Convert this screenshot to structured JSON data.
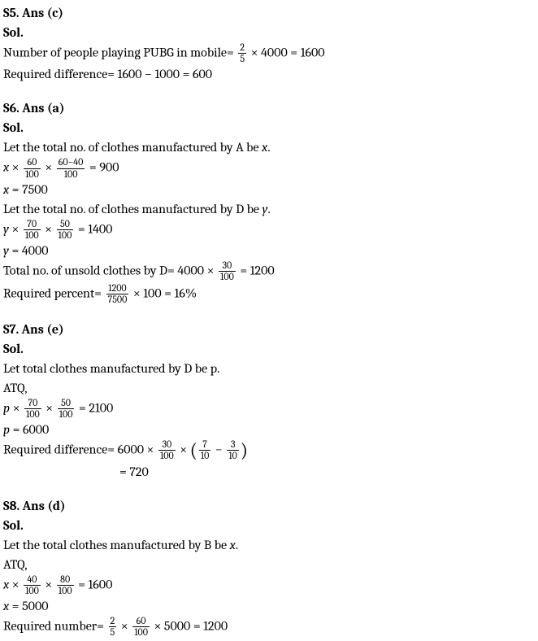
{
  "s5": {
    "heading": "S5. Ans (c)",
    "sol_label": "Sol.",
    "l1_a": "Number of people playing PUBG in mobile",
    "l1_eq": "=",
    "l1_frac_num": "2",
    "l1_frac_den": "5",
    "l1_times": "×",
    "l1_b": "4000",
    "l1_eq2": "=",
    "l1_c": "1600",
    "l2_a": "Required difference",
    "l2_eq": "=",
    "l2_b": "1600",
    "l2_minus": "−",
    "l2_c": "1000",
    "l2_eq2": "=",
    "l2_d": "600"
  },
  "s6": {
    "heading": "S6. Ans (a)",
    "sol_label": "Sol.",
    "l1": "Let the total no. of clothes manufactured by A be ",
    "l1_var": "x",
    "l1_dot": ".",
    "l2_var": "x",
    "l2_t1": "×",
    "l2_f1n": "60",
    "l2_f1d": "100",
    "l2_t2": "×",
    "l2_f2n": "60−40",
    "l2_f2d": "100",
    "l2_eq": "=",
    "l2_rhs": "900",
    "l3_var": "x",
    "l3_eq": "=",
    "l3_rhs": "7500",
    "l4_pre": " Let the total no. of clothes manufactured by D be ",
    "l4_var": "y",
    "l4_dot": ".",
    "l5_var": "y",
    "l5_t1": "×",
    "l5_f1n": "70",
    "l5_f1d": "100",
    "l5_t2": "×",
    "l5_f2n": "50",
    "l5_f2d": "100",
    "l5_eq": "=",
    "l5_rhs": "1400",
    "l6_var": "y",
    "l6_eq": "=",
    "l6_rhs": "4000",
    "l7_a": "Total no. of unsold clothes by D",
    "l7_eq": "=",
    "l7_b": "4000",
    "l7_t": "×",
    "l7_fn": "30",
    "l7_fd": "100",
    "l7_eq2": "=",
    "l7_c": "1200",
    "l8_a": "Required percent",
    "l8_eq": "=",
    "l8_fn": "1200",
    "l8_fd": "7500",
    "l8_t": "×",
    "l8_b": "100",
    "l8_eq2": "=",
    "l8_c": "16%"
  },
  "s7": {
    "heading": "S7. Ans (e)",
    "sol_label": "Sol.",
    "l1": "Let total clothes manufactured by D be p.",
    "l2": "ATQ,",
    "l3_var": "p",
    "l3_t1": "×",
    "l3_f1n": "70",
    "l3_f1d": "100",
    "l3_t2": "×",
    "l3_f2n": "50",
    "l3_f2d": "100",
    "l3_eq": "=",
    "l3_rhs": "2100",
    "l4_var": "p",
    "l4_eq": "=",
    "l4_rhs": "6000",
    "l5_a": "Required difference",
    "l5_eq": "=",
    "l5_b": "6000",
    "l5_t1": "×",
    "l5_f1n": "30",
    "l5_f1d": "100",
    "l5_t2": "×",
    "l5_lparen": "(",
    "l5_f2n": "7",
    "l5_f2d": "10",
    "l5_minus": "−",
    "l5_f3n": "3",
    "l5_f3d": "10",
    "l5_rparen": ")",
    "l6_eq": "=",
    "l6_rhs": "720"
  },
  "s8": {
    "heading": "S8. Ans (d)",
    "sol_label": "Sol.",
    "l1": "Let the total clothes manufactured by B be ",
    "l1_var": "x",
    "l1_dot": ".",
    "l2": "ATQ,",
    "l3_var": "x",
    "l3_t1": "×",
    "l3_f1n": "40",
    "l3_f1d": "100",
    "l3_t2": "×",
    "l3_f2n": "80",
    "l3_f2d": "100",
    "l3_eq": "=",
    "l3_rhs": "1600",
    "l4_var": "x",
    "l4_eq": "=",
    "l4_rhs": "5000",
    "l5_a": "Required number",
    "l5_eq": "=",
    "l5_f1n": "2",
    "l5_f1d": "5",
    "l5_t1": "×",
    "l5_f2n": "60",
    "l5_f2d": "100",
    "l5_t2": "×",
    "l5_b": "5000",
    "l5_eq2": "=",
    "l5_c": "1200"
  }
}
